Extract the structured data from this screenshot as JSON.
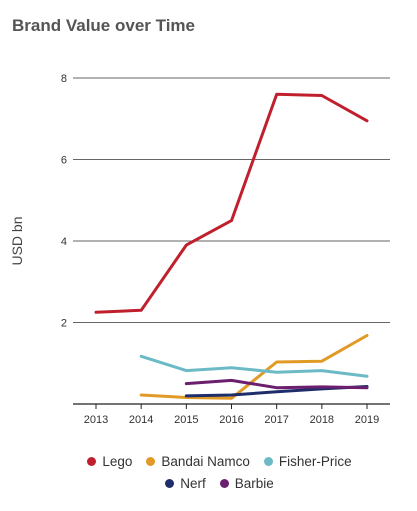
{
  "chart_data": {
    "type": "line",
    "title": "Brand Value over Time",
    "xlabel": "",
    "ylabel": "USD bn",
    "x": [
      2013,
      2014,
      2015,
      2016,
      2017,
      2018,
      2019
    ],
    "xlim": [
      2013,
      2019
    ],
    "ylim": [
      0,
      8
    ],
    "yticks": [
      2,
      4,
      6,
      8
    ],
    "grid": true,
    "legend_position": "bottom",
    "series": [
      {
        "name": "Lego",
        "color": "#c0202e",
        "values": [
          2.25,
          2.3,
          3.9,
          4.5,
          7.6,
          7.57,
          6.95
        ]
      },
      {
        "name": "Bandai Namco",
        "color": "#e09a25",
        "values": [
          null,
          0.22,
          0.16,
          0.14,
          1.03,
          1.05,
          1.68
        ]
      },
      {
        "name": "Fisher-Price",
        "color": "#6bbac6",
        "values": [
          null,
          1.17,
          0.82,
          0.89,
          0.78,
          0.82,
          0.68
        ]
      },
      {
        "name": "Nerf",
        "color": "#1f2d6b",
        "values": [
          null,
          null,
          0.2,
          0.22,
          0.3,
          0.37,
          0.43
        ]
      },
      {
        "name": "Barbie",
        "color": "#6b1f6e",
        "values": [
          null,
          null,
          0.5,
          0.58,
          0.4,
          0.42,
          0.4
        ]
      }
    ],
    "legend_rows": [
      [
        0,
        1,
        2
      ],
      [
        3,
        4
      ]
    ]
  }
}
